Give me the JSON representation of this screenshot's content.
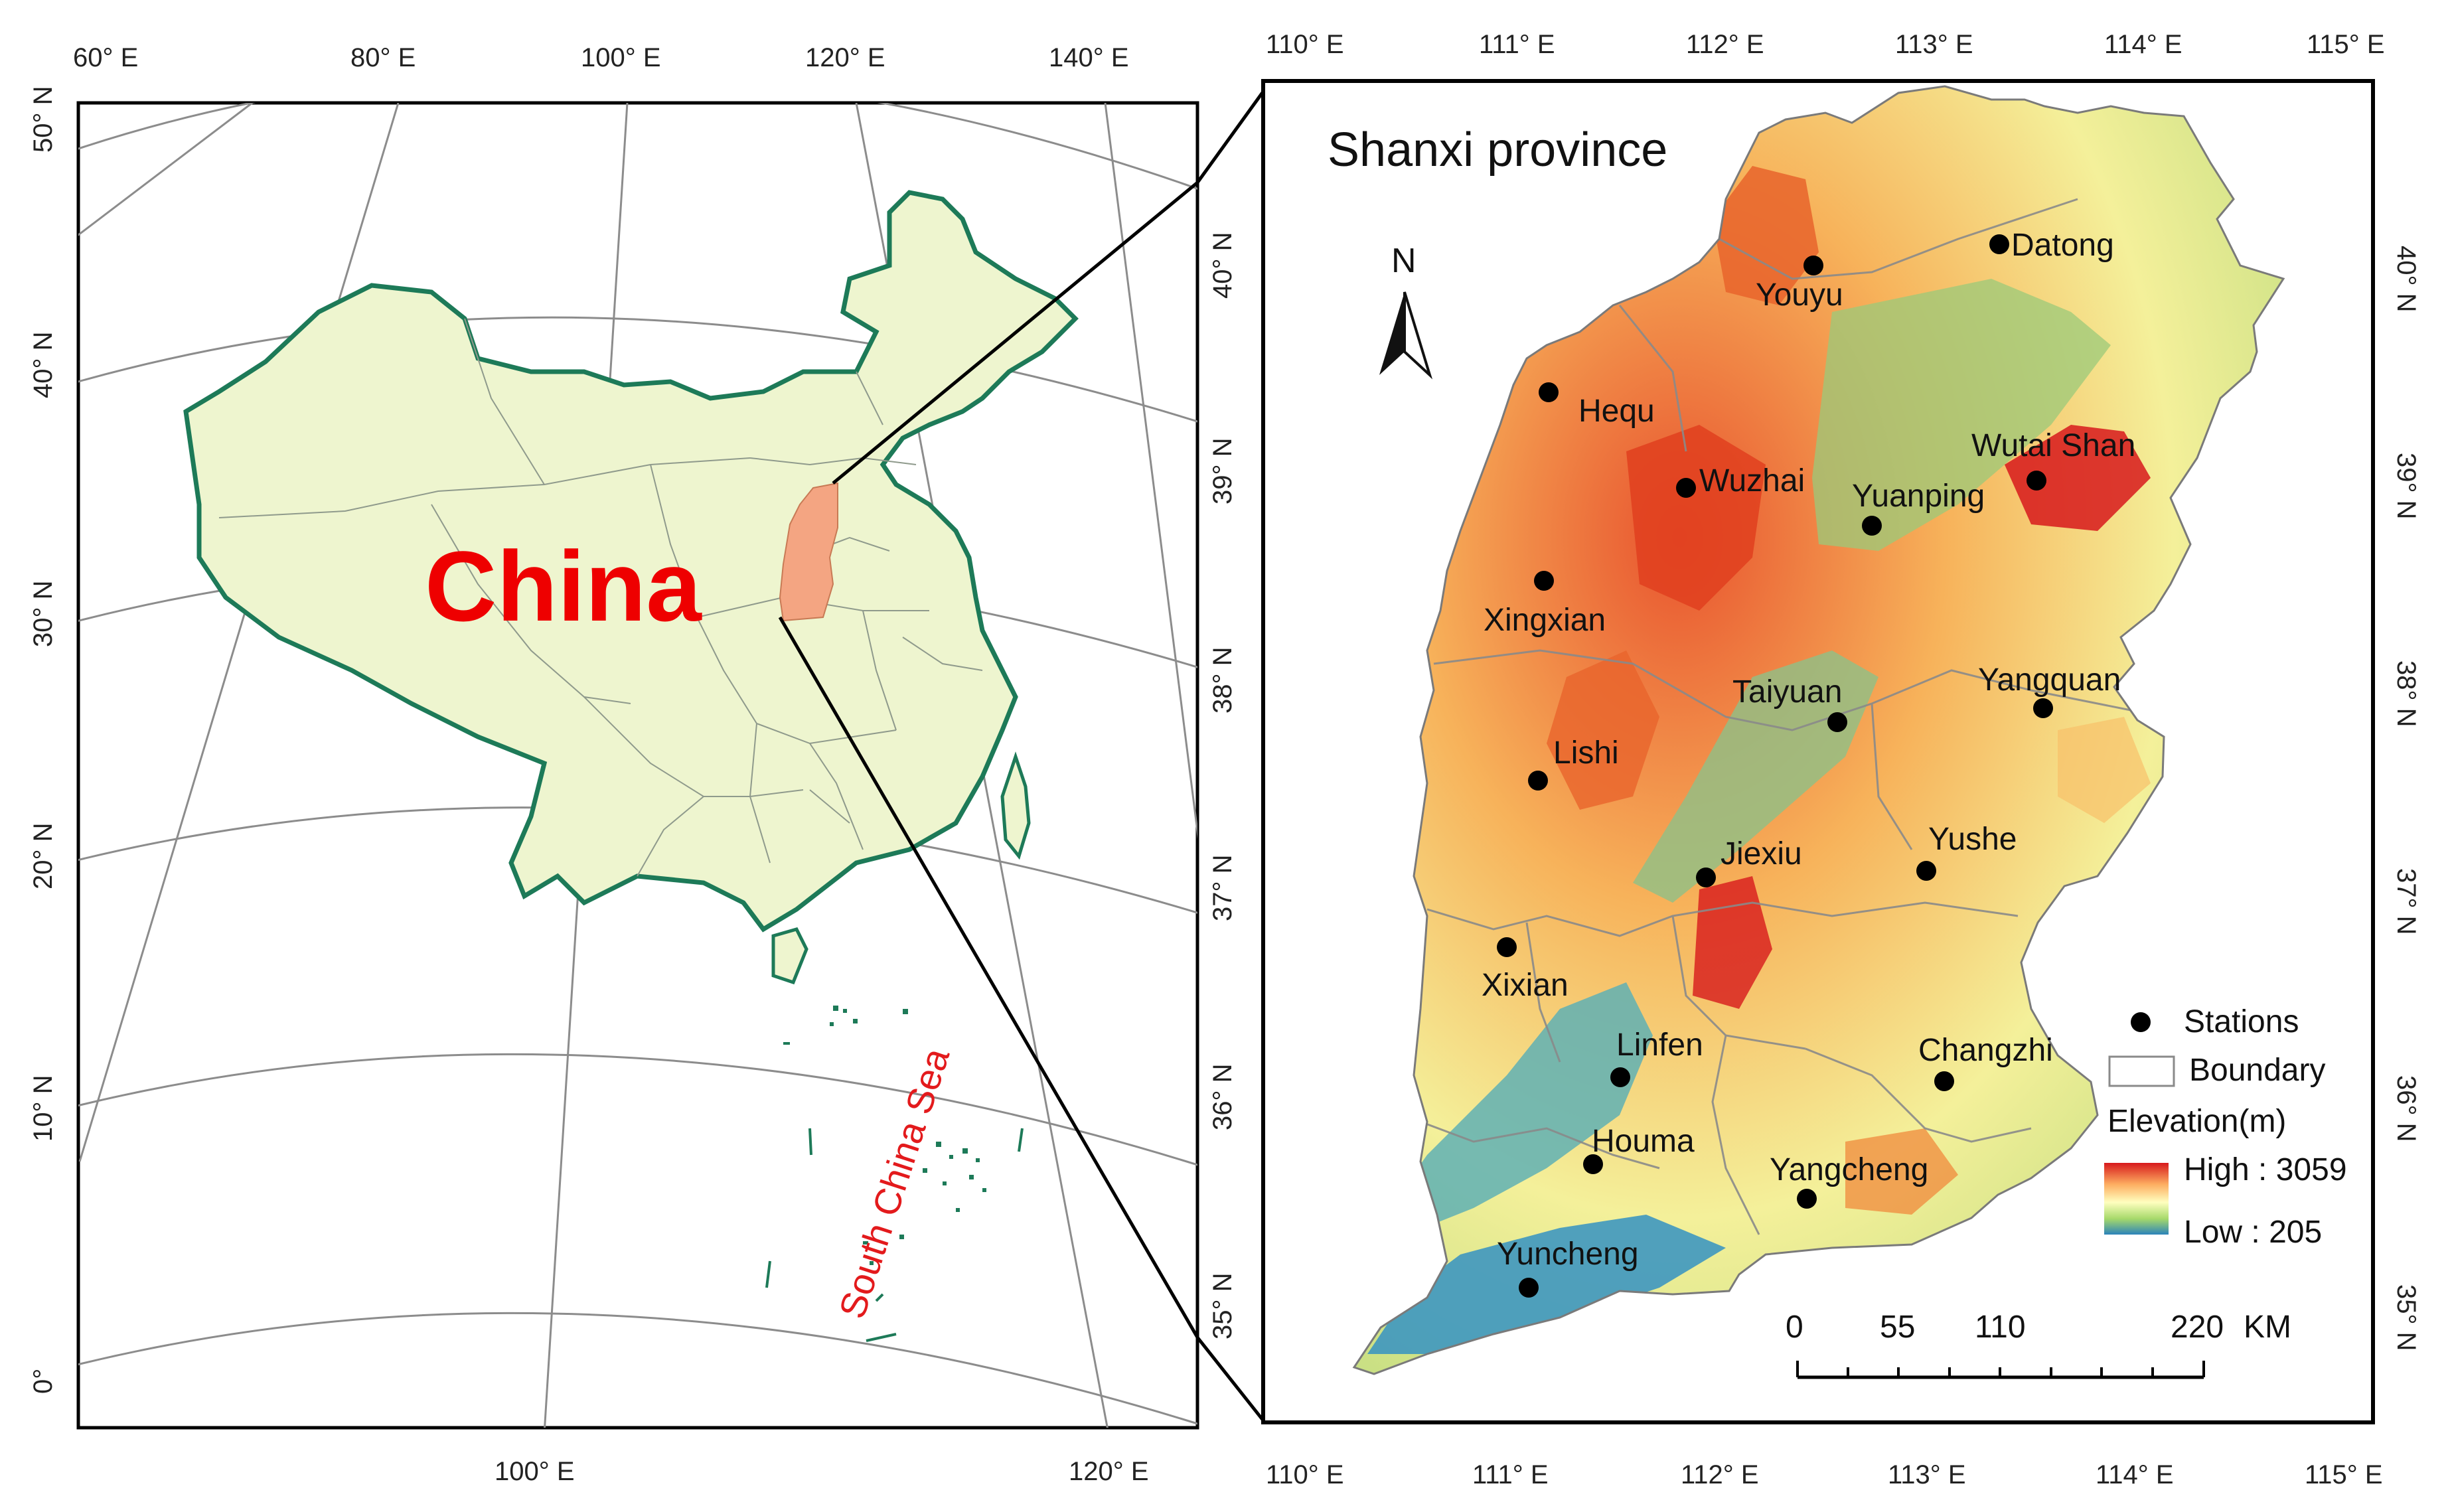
{
  "left_map": {
    "country_label": "China",
    "sea_label": "South China Sea",
    "top_ticks": [
      "60° E",
      "80° E",
      "100° E",
      "120° E",
      "140° E"
    ],
    "bottom_ticks": [
      "100° E",
      "120° E"
    ],
    "left_ticks": [
      "50° N",
      "40° N",
      "30° N",
      "20° N",
      "10° N",
      "0°"
    ],
    "colors": {
      "land": "#eef5cf",
      "coast": "#1d7a58",
      "highlight": "#f4a582",
      "sea_label": "#e31a1c",
      "country_label": "#ee0000"
    }
  },
  "right_map": {
    "title": "Shanxi province",
    "north_label": "N",
    "top_ticks": [
      "110° E",
      "111° E",
      "112° E",
      "113° E",
      "114° E",
      "115° E"
    ],
    "bottom_ticks": [
      "110° E",
      "111° E",
      "112° E",
      "113° E",
      "114° E",
      "115° E"
    ],
    "lat_ticks": [
      "40° N",
      "39° N",
      "38° N",
      "37° N",
      "36° N",
      "35° N"
    ],
    "stations": [
      {
        "name": "Datong",
        "lon": 113.33,
        "lat": 40.1
      },
      {
        "name": "Youyu",
        "lon": 112.45,
        "lat": 40.0
      },
      {
        "name": "Hequ",
        "lon": 111.15,
        "lat": 39.38
      },
      {
        "name": "Wutai Shan",
        "lon": 113.52,
        "lat": 38.95
      },
      {
        "name": "Wuzhai",
        "lon": 111.82,
        "lat": 38.92
      },
      {
        "name": "Yuanping",
        "lon": 112.72,
        "lat": 38.73
      },
      {
        "name": "Xingxian",
        "lon": 111.13,
        "lat": 38.47
      },
      {
        "name": "Taiyuan",
        "lon": 112.55,
        "lat": 37.78
      },
      {
        "name": "Yangquan",
        "lon": 113.55,
        "lat": 37.85
      },
      {
        "name": "Lishi",
        "lon": 111.1,
        "lat": 37.5
      },
      {
        "name": "Jiexiu",
        "lon": 111.92,
        "lat": 37.03
      },
      {
        "name": "Yushe",
        "lon": 112.98,
        "lat": 37.07
      },
      {
        "name": "Xixian",
        "lon": 110.97,
        "lat": 36.7
      },
      {
        "name": "Linfen",
        "lon": 111.5,
        "lat": 36.07
      },
      {
        "name": "Changzhi",
        "lon": 113.07,
        "lat": 36.05
      },
      {
        "name": "Houma",
        "lon": 111.37,
        "lat": 35.65
      },
      {
        "name": "Yangcheng",
        "lon": 112.4,
        "lat": 35.48
      },
      {
        "name": "Yuncheng",
        "lon": 111.02,
        "lat": 35.05
      }
    ],
    "legend": {
      "stations_label": "Stations",
      "boundary_label": "Boundary",
      "elevation_title": "Elevation(m)",
      "high_label": "High : 3059",
      "low_label": "Low : 205"
    },
    "scale_bar": {
      "ticks": [
        "0",
        "55",
        "110",
        "220"
      ],
      "unit": "KM"
    },
    "colors": {
      "high": "#d7191c",
      "mid_high": "#fdae61",
      "mid": "#ffffbf",
      "mid_low": "#a6d96a",
      "low": "#2b83ba"
    }
  }
}
